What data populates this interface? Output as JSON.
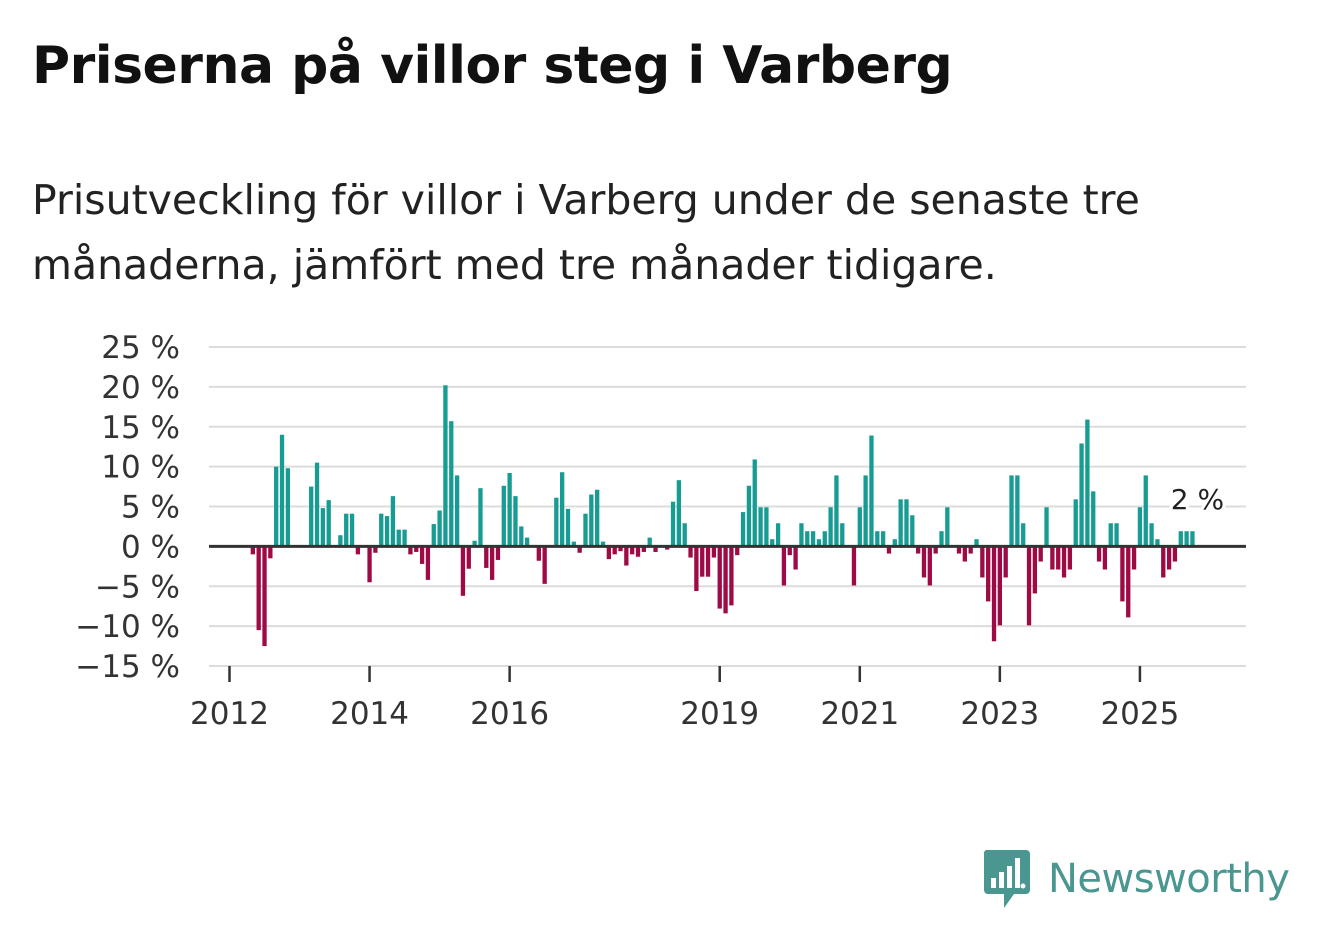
{
  "title": "Priserna på villor steg i Varberg",
  "subtitle": "Prisutveckling för villor i Varberg under de senaste tre månaderna, jämfört med tre månader tidigare.",
  "brand": {
    "name": "Newsworthy",
    "color": "#4a9690",
    "icon": "bar-chart-logo-icon"
  },
  "colors": {
    "positive": "#179c93",
    "negative": "#9e0a45",
    "grid": "#dcdcdc",
    "zero_line": "#333333"
  },
  "chart_data": {
    "type": "bar",
    "title": "Priserna på villor steg i Varberg",
    "xlabel": "",
    "ylabel": "",
    "ylim": [
      -15,
      25
    ],
    "yticks": [
      25,
      20,
      15,
      10,
      5,
      0,
      -5,
      -10,
      -15
    ],
    "ytick_labels": [
      "25 %",
      "20 %",
      "15 %",
      "10 %",
      "5 %",
      "0 %",
      "−5 %",
      "−10 %",
      "−15 %"
    ],
    "xticks": [
      {
        "label": "2012",
        "index": 0
      },
      {
        "label": "2014",
        "index": 24
      },
      {
        "label": "2016",
        "index": 48
      },
      {
        "label": "2019",
        "index": 84
      },
      {
        "label": "2021",
        "index": 108
      },
      {
        "label": "2023",
        "index": 132
      },
      {
        "label": "2025",
        "index": 156
      }
    ],
    "annotation": {
      "text": "2 %",
      "index": 165
    },
    "values": [
      null,
      null,
      null,
      null,
      -1,
      -10.5,
      -12.5,
      -1.5,
      10,
      14,
      9.8,
      null,
      null,
      null,
      7.5,
      10.5,
      4.8,
      5.8,
      null,
      1.4,
      4.1,
      4.1,
      -1,
      null,
      -4.5,
      -0.8,
      4.1,
      3.8,
      6.3,
      2.1,
      2.1,
      -1,
      -0.7,
      -2.2,
      -4.2,
      2.8,
      4.5,
      20.2,
      15.7,
      8.9,
      -6.2,
      -2.8,
      0.7,
      7.3,
      -2.7,
      -4.2,
      -1.7,
      7.6,
      9.2,
      6.3,
      2.5,
      1.1,
      null,
      -1.8,
      -4.7,
      null,
      6.1,
      9.3,
      4.7,
      0.6,
      -0.8,
      4.1,
      6.5,
      7.1,
      0.6,
      -1.6,
      -1,
      -0.6,
      -2.4,
      -1,
      -1.3,
      -0.7,
      1.1,
      -0.7,
      null,
      -0.4,
      5.6,
      8.3,
      2.9,
      -1.4,
      -5.6,
      -3.8,
      -3.8,
      -1.4,
      -7.8,
      -8.4,
      -7.4,
      -1.1,
      4.3,
      7.6,
      10.9,
      4.9,
      4.9,
      0.9,
      2.9,
      -4.9,
      -1.1,
      -2.9,
      2.9,
      1.9,
      1.9,
      0.9,
      1.9,
      4.9,
      8.9,
      2.9,
      null,
      -4.9,
      4.9,
      8.9,
      13.9,
      1.9,
      1.9,
      -0.9,
      0.9,
      5.9,
      5.9,
      3.9,
      -0.9,
      -3.9,
      -4.9,
      -0.9,
      1.9,
      4.9,
      null,
      -0.9,
      -1.9,
      -0.9,
      0.9,
      -3.9,
      -6.9,
      -11.9,
      -9.9,
      -3.9,
      8.9,
      8.9,
      2.9,
      -9.9,
      -5.9,
      -1.9,
      4.9,
      -2.9,
      -2.9,
      -3.9,
      -2.9,
      5.9,
      12.9,
      15.9,
      6.9,
      -1.9,
      -2.9,
      2.9,
      2.9,
      -6.9,
      -8.9,
      -2.9,
      4.9,
      8.9,
      2.9,
      0.9,
      -3.9,
      -2.9,
      -1.9,
      1.9,
      1.9,
      1.9
    ]
  }
}
